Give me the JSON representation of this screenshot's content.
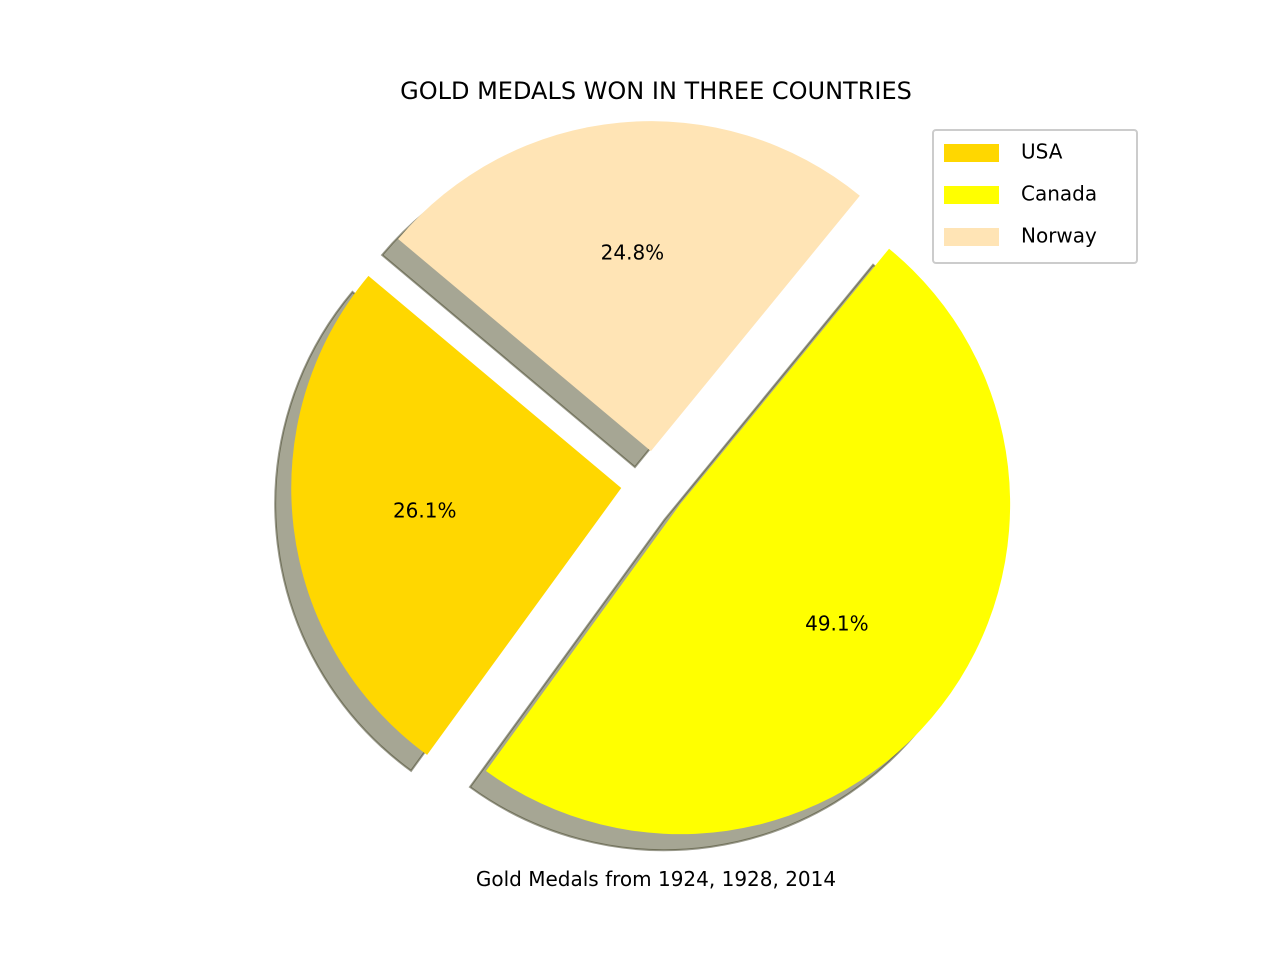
{
  "chart_data": {
    "type": "pie",
    "title": "GOLD MEDALS WON IN THREE COUNTRIES",
    "xlabel": "Gold Medals from 1924, 1928, 2014",
    "labels": [
      "USA",
      "Canada",
      "Norway"
    ],
    "values": [
      26.1,
      49.1,
      24.8
    ],
    "percent_labels": [
      "26.1%",
      "49.1%",
      "24.8%"
    ],
    "colors": [
      "#FFD700",
      "#FFFF00",
      "#FFE4B5"
    ],
    "exploded": [
      true,
      true,
      true
    ],
    "shadow": true,
    "start_angle_deg": 140,
    "legend": {
      "position": "top-right",
      "entries": [
        "USA",
        "Canada",
        "Norway"
      ]
    }
  }
}
